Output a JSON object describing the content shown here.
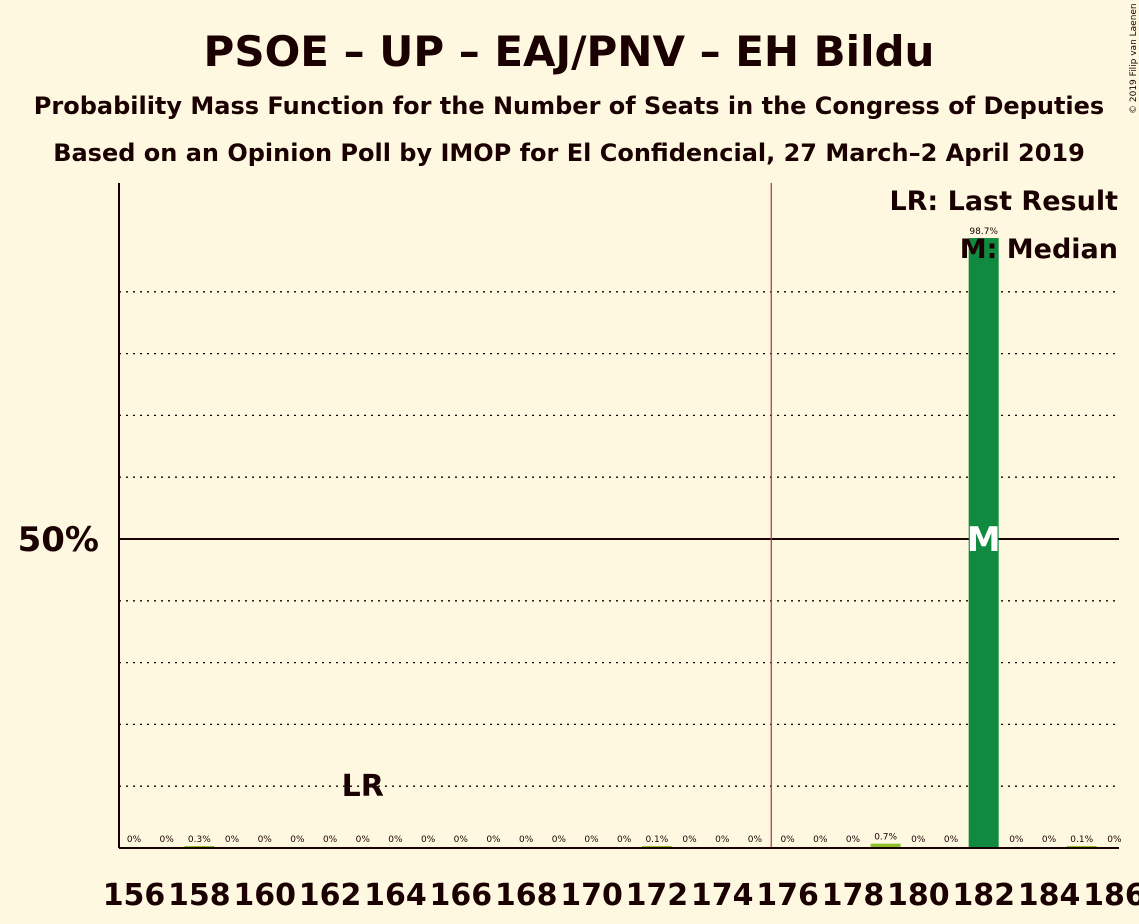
{
  "chart_data": {
    "type": "bar",
    "title": "PSOE – UP – EAJ/PNV – EH Bildu",
    "subtitle": "Probability Mass Function for the Number of Seats in the Congress of Deputies",
    "subtitle2": "Based on an Opinion Poll by IMOP for El Confidencial, 27 March–2 April 2019",
    "copyright": "© 2019 Filip van Laenen",
    "x": [
      156,
      157,
      158,
      159,
      160,
      161,
      162,
      163,
      164,
      165,
      166,
      167,
      168,
      169,
      170,
      171,
      172,
      173,
      174,
      175,
      176,
      177,
      178,
      179,
      180,
      181,
      182,
      183,
      184,
      185,
      186
    ],
    "values": [
      0,
      0,
      0.3,
      0,
      0,
      0,
      0,
      0,
      0,
      0,
      0,
      0,
      0,
      0,
      0,
      0,
      0.1,
      0,
      0,
      0,
      0,
      0,
      0,
      0.7,
      0,
      0,
      98.7,
      0,
      0,
      0.1,
      0
    ],
    "labels": [
      "0%",
      "0%",
      "0.3%",
      "0%",
      "0%",
      "0%",
      "0%",
      "0%",
      "0%",
      "0%",
      "0%",
      "0%",
      "0%",
      "0%",
      "0%",
      "0%",
      "0.1%",
      "0%",
      "0%",
      "0%",
      "0%",
      "0%",
      "0%",
      "0.7%",
      "0%",
      "0%",
      "98.7%",
      "0%",
      "0%",
      "0.1%",
      "0%"
    ],
    "xticks": [
      "156",
      "158",
      "160",
      "162",
      "164",
      "166",
      "168",
      "170",
      "172",
      "174",
      "176",
      "178",
      "180",
      "182",
      "184",
      "186"
    ],
    "ytick_label": "50%",
    "ylim": [
      0,
      110
    ],
    "gridlines": [
      10,
      20,
      30,
      40,
      60,
      70,
      80,
      90
    ],
    "majority_line": 176,
    "last_result": 163,
    "last_result_label": "LR",
    "median": 182,
    "median_label": "M",
    "legend": [
      "LR: Last Result",
      "M: Median"
    ],
    "colors": {
      "bar_main": "#108a3e",
      "bar_other": "#8fbf2a",
      "majority": "#b03040",
      "background": "#fff8e1"
    }
  }
}
